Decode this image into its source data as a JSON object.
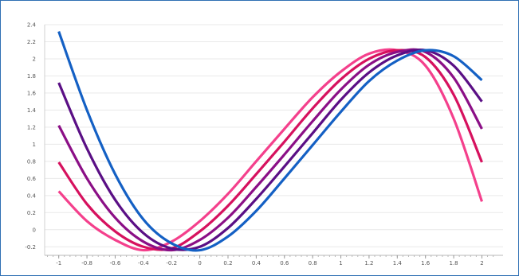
{
  "chart_data": {
    "type": "line",
    "title": "",
    "xlabel": "",
    "ylabel": "",
    "xlim": [
      -1.1,
      2.15
    ],
    "ylim": [
      -0.3,
      2.4
    ],
    "x_ticks": [
      -1,
      -0.8,
      -0.6,
      -0.4,
      -0.2,
      0,
      0.2,
      0.4,
      0.6,
      0.8,
      1,
      1.2,
      1.4,
      1.6,
      1.8,
      2
    ],
    "x_tick_labels": [
      "-1",
      "-0.8",
      "-0.6",
      "-0.4",
      "-0.2",
      "0",
      "0.2",
      "0.4",
      "0.6",
      "0.8",
      "1",
      "1.2",
      "1.4",
      "1.6",
      "1.8",
      "2"
    ],
    "y_ticks": [
      -0.2,
      0,
      0.2,
      0.4,
      0.6,
      0.8,
      1,
      1.2,
      1.4,
      1.6,
      1.8,
      2,
      2.2,
      2.4
    ],
    "y_tick_labels": [
      "-0.2",
      "0",
      "0.2",
      "0.4",
      "0.6",
      "0.8",
      "1",
      "1.2",
      "1.4",
      "1.6",
      "1.8",
      "2",
      "2.2",
      "2.4"
    ],
    "grid": "horizontal",
    "legend": "none",
    "series": [
      {
        "color": "#f4408c",
        "x": [
          -1,
          -0.8,
          -0.6,
          -0.4,
          -0.2,
          0,
          0.2,
          0.4,
          0.6,
          0.8,
          1,
          1.2,
          1.4,
          1.6,
          1.8,
          2
        ],
        "y": [
          0.45,
          0.1,
          -0.12,
          -0.24,
          -0.14,
          0.1,
          0.42,
          0.8,
          1.18,
          1.55,
          1.85,
          2.06,
          2.1,
          1.92,
          1.3,
          0.33
        ]
      },
      {
        "color": "#d6115e",
        "x": [
          -1,
          -0.8,
          -0.6,
          -0.4,
          -0.2,
          0,
          0.2,
          0.4,
          0.6,
          0.8,
          1,
          1.2,
          1.4,
          1.6,
          1.8,
          2
        ],
        "y": [
          0.79,
          0.3,
          -0.02,
          -0.2,
          -0.22,
          -0.02,
          0.28,
          0.65,
          1.03,
          1.42,
          1.76,
          2.0,
          2.1,
          2.02,
          1.58,
          0.79
        ]
      },
      {
        "color": "#8b0f86",
        "x": [
          -1,
          -0.8,
          -0.6,
          -0.4,
          -0.2,
          0,
          0.2,
          0.4,
          0.6,
          0.8,
          1,
          1.2,
          1.4,
          1.6,
          1.8,
          2
        ],
        "y": [
          1.22,
          0.6,
          0.14,
          -0.14,
          -0.24,
          -0.12,
          0.14,
          0.5,
          0.88,
          1.27,
          1.64,
          1.93,
          2.08,
          2.08,
          1.78,
          1.18
        ]
      },
      {
        "color": "#5a0f85",
        "x": [
          -1,
          -0.8,
          -0.6,
          -0.4,
          -0.2,
          0,
          0.2,
          0.4,
          0.6,
          0.8,
          1,
          1.2,
          1.4,
          1.6,
          1.8,
          2
        ],
        "y": [
          1.72,
          0.95,
          0.35,
          -0.04,
          -0.22,
          -0.2,
          0.02,
          0.36,
          0.74,
          1.13,
          1.52,
          1.84,
          2.04,
          2.1,
          1.92,
          1.5
        ]
      },
      {
        "color": "#1460c4",
        "x": [
          -1,
          -0.8,
          -0.6,
          -0.4,
          -0.2,
          0,
          0.2,
          0.4,
          0.6,
          0.8,
          1,
          1.2,
          1.4,
          1.6,
          1.8,
          2
        ],
        "y": [
          2.32,
          1.4,
          0.65,
          0.12,
          -0.16,
          -0.24,
          -0.08,
          0.22,
          0.6,
          0.99,
          1.38,
          1.74,
          1.98,
          2.1,
          2.03,
          1.75
        ]
      }
    ]
  }
}
